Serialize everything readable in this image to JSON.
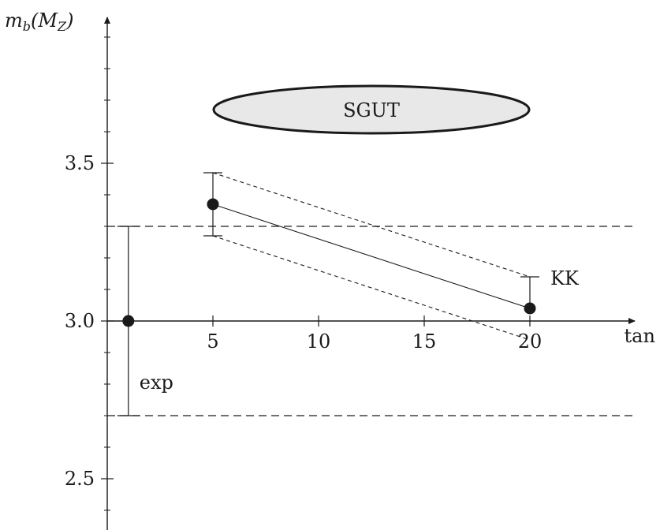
{
  "chart_data": {
    "type": "scatter",
    "y_label": "m_b(M_Z)",
    "x_label": "tan β",
    "x_ticks": [
      5,
      10,
      15,
      20
    ],
    "y_ticks": [
      2.5,
      3.0,
      3.5
    ],
    "y_tick_labels": [
      "2.5",
      "3.0",
      "3.5"
    ],
    "xlim": [
      0,
      22
    ],
    "ylim": [
      2.4,
      4.0
    ],
    "exp": {
      "label": "exp",
      "x": 1,
      "y": 3.0,
      "y_low": 2.7,
      "y_high": 3.3
    },
    "kk": {
      "label": "KK",
      "points": [
        {
          "x": 5,
          "y": 3.37,
          "y_low": 3.27,
          "y_high": 3.47
        },
        {
          "x": 20,
          "y": 3.04,
          "y_low": 2.94,
          "y_high": 3.14
        }
      ]
    },
    "sgut": {
      "label": "SGUT",
      "x_center": 12.5,
      "y_center": 3.67
    }
  },
  "colors": {
    "ink": "#1a1a1a",
    "sgut_fill": "#e8e8e8"
  }
}
